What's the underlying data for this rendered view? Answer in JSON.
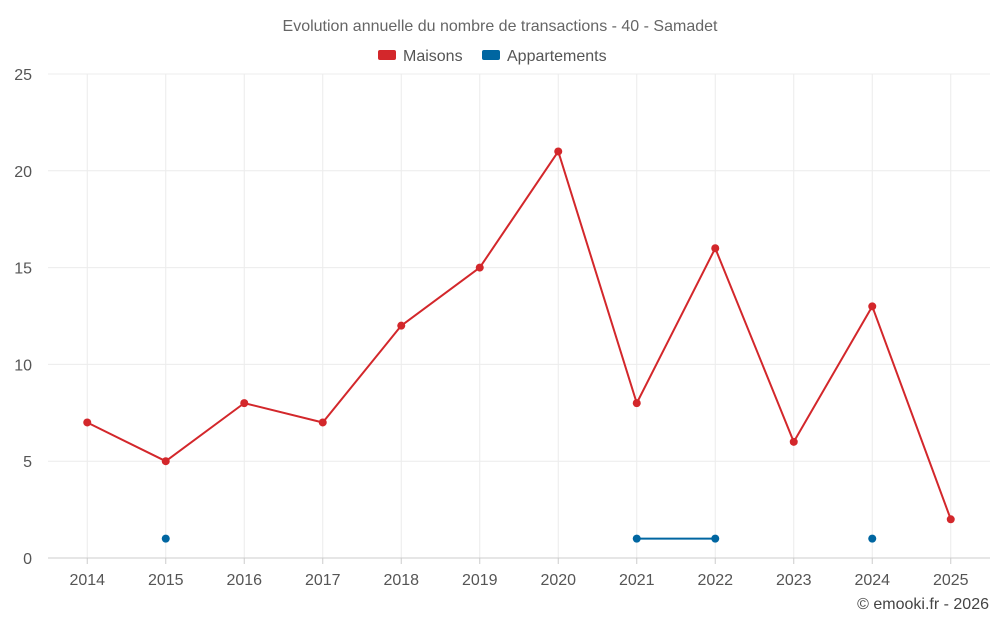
{
  "chart_data": {
    "type": "line",
    "title": "Evolution annuelle du nombre de transactions - 40 - Samadet",
    "categories": [
      "2014",
      "2015",
      "2016",
      "2017",
      "2018",
      "2019",
      "2020",
      "2021",
      "2022",
      "2023",
      "2024",
      "2025"
    ],
    "ylim": [
      0,
      25
    ],
    "yticks": [
      0,
      5,
      10,
      15,
      20,
      25
    ],
    "grid": true,
    "legend_position": "top-center",
    "series": [
      {
        "name": "Maisons",
        "color": "#d3272b",
        "values": [
          7,
          5,
          8,
          7,
          12,
          15,
          21,
          8,
          16,
          6,
          13,
          2
        ]
      },
      {
        "name": "Appartements",
        "color": "#0066a1",
        "values": [
          null,
          1,
          null,
          null,
          null,
          null,
          null,
          1,
          1,
          null,
          1,
          null
        ]
      }
    ],
    "credit": "© emooki.fr - 2026"
  }
}
